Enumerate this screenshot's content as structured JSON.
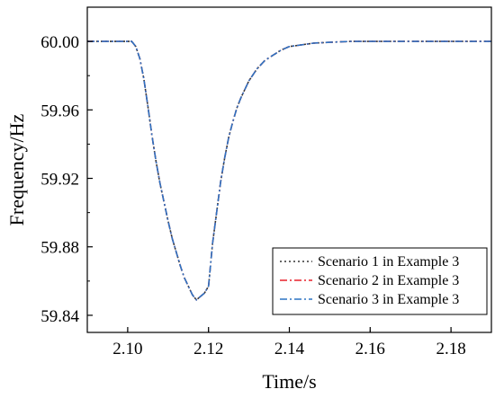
{
  "chart_data": {
    "type": "line",
    "title": "",
    "xlabel": "Time/s",
    "ylabel": "Frequency/Hz",
    "xlim": [
      2.09,
      2.19
    ],
    "ylim": [
      59.83,
      60.02
    ],
    "xticks": [
      2.1,
      2.12,
      2.14,
      2.16,
      2.18
    ],
    "xtick_labels": [
      "2.10",
      "2.12",
      "2.14",
      "2.16",
      "2.18"
    ],
    "yticks": [
      59.84,
      59.88,
      59.92,
      59.96,
      60.0
    ],
    "ytick_labels": [
      "59.84",
      "59.88",
      "59.92",
      "59.96",
      "60.00"
    ],
    "grid": false,
    "legend_position": "bottom-right",
    "series": [
      {
        "name": "Scenario 1 in Example 3",
        "color": "#333333",
        "dash": "dotted",
        "x": [
          2.09,
          2.101,
          2.102,
          2.103,
          2.104,
          2.105,
          2.106,
          2.107,
          2.108,
          2.109,
          2.11,
          2.111,
          2.112,
          2.113,
          2.114,
          2.115,
          2.116,
          2.117,
          2.118,
          2.119,
          2.12,
          2.121,
          2.122,
          2.123,
          2.124,
          2.125,
          2.126,
          2.127,
          2.128,
          2.13,
          2.132,
          2.134,
          2.136,
          2.138,
          2.14,
          2.143,
          2.146,
          2.15,
          2.155,
          2.16,
          2.17,
          2.18,
          2.19
        ],
        "y": [
          60.0,
          60.0,
          59.997,
          59.99,
          59.978,
          59.962,
          59.945,
          59.93,
          59.917,
          59.906,
          59.895,
          59.885,
          59.877,
          59.869,
          59.862,
          59.857,
          59.852,
          59.849,
          59.851,
          59.853,
          59.857,
          59.882,
          59.9,
          59.918,
          59.932,
          59.944,
          59.953,
          59.961,
          59.967,
          59.977,
          59.984,
          59.989,
          59.992,
          59.995,
          59.997,
          59.998,
          59.999,
          59.9995,
          60.0,
          60.0,
          60.0,
          60.0,
          60.0
        ]
      },
      {
        "name": "Scenario 2 in Example 3",
        "color": "#e8202a",
        "dash": "dashdot",
        "x": [
          2.09,
          2.101,
          2.102,
          2.103,
          2.104,
          2.105,
          2.106,
          2.107,
          2.108,
          2.109,
          2.11,
          2.111,
          2.112,
          2.113,
          2.114,
          2.115,
          2.116,
          2.117,
          2.118,
          2.119,
          2.12,
          2.121,
          2.122,
          2.123,
          2.124,
          2.125,
          2.126,
          2.127,
          2.128,
          2.13,
          2.132,
          2.134,
          2.136,
          2.138,
          2.14,
          2.143,
          2.146,
          2.15,
          2.155,
          2.16,
          2.17,
          2.18,
          2.19
        ],
        "y": [
          60.0,
          60.0,
          59.997,
          59.99,
          59.978,
          59.962,
          59.945,
          59.93,
          59.917,
          59.906,
          59.895,
          59.885,
          59.877,
          59.869,
          59.862,
          59.857,
          59.852,
          59.849,
          59.851,
          59.853,
          59.857,
          59.882,
          59.9,
          59.918,
          59.932,
          59.944,
          59.953,
          59.961,
          59.967,
          59.977,
          59.984,
          59.989,
          59.992,
          59.995,
          59.997,
          59.998,
          59.999,
          59.9995,
          60.0,
          60.0,
          60.0,
          60.0,
          60.0
        ]
      },
      {
        "name": "Scenario 3 in Example 3",
        "color": "#2b74c4",
        "dash": "dashdot",
        "x": [
          2.09,
          2.101,
          2.102,
          2.103,
          2.104,
          2.105,
          2.106,
          2.107,
          2.108,
          2.109,
          2.11,
          2.111,
          2.112,
          2.113,
          2.114,
          2.115,
          2.116,
          2.117,
          2.118,
          2.119,
          2.12,
          2.121,
          2.122,
          2.123,
          2.124,
          2.125,
          2.126,
          2.127,
          2.128,
          2.13,
          2.132,
          2.134,
          2.136,
          2.138,
          2.14,
          2.143,
          2.146,
          2.15,
          2.155,
          2.16,
          2.17,
          2.18,
          2.19
        ],
        "y": [
          60.0,
          60.0,
          59.997,
          59.99,
          59.978,
          59.962,
          59.945,
          59.93,
          59.917,
          59.906,
          59.895,
          59.885,
          59.877,
          59.869,
          59.862,
          59.857,
          59.852,
          59.849,
          59.851,
          59.853,
          59.857,
          59.882,
          59.9,
          59.918,
          59.932,
          59.944,
          59.953,
          59.961,
          59.967,
          59.977,
          59.984,
          59.989,
          59.992,
          59.995,
          59.997,
          59.998,
          59.999,
          59.9995,
          60.0,
          60.0,
          60.0,
          60.0,
          60.0
        ]
      }
    ]
  }
}
